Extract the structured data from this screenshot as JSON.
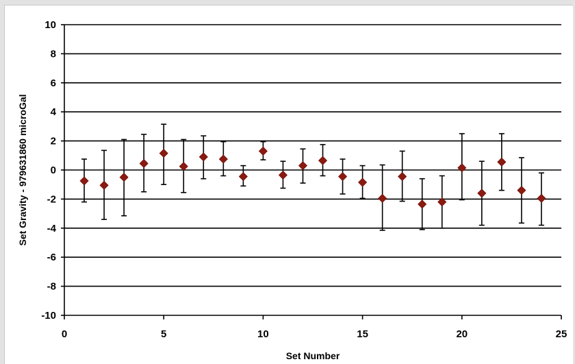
{
  "chart_data": {
    "type": "scatter",
    "title": "",
    "xlabel": "Set Number",
    "ylabel": "Set Gravity - 979631860 microGal",
    "xlim": [
      0,
      25
    ],
    "ylim": [
      -10,
      10
    ],
    "x_ticks": [
      0,
      5,
      10,
      15,
      20,
      25
    ],
    "y_ticks": [
      10,
      8,
      6,
      4,
      2,
      0,
      -2,
      -4,
      -6,
      -8,
      -10
    ],
    "x_tick_labels": [
      "0",
      "5",
      "10",
      "15",
      "20",
      "25"
    ],
    "y_tick_labels": [
      "10",
      "8",
      "6",
      "4",
      "2",
      "0",
      "-2",
      "-4",
      "-6",
      "-8",
      "-10"
    ],
    "grid": "horizontal",
    "marker_color": "#8b1a10",
    "error_bar_color": "#000000",
    "points": [
      {
        "x": 1,
        "y": -0.75,
        "err_low": -2.2,
        "err_high": 0.75
      },
      {
        "x": 2,
        "y": -1.05,
        "err_low": -3.4,
        "err_high": 1.35
      },
      {
        "x": 3,
        "y": -0.5,
        "err_low": -3.15,
        "err_high": 2.1
      },
      {
        "x": 4,
        "y": 0.45,
        "err_low": -1.5,
        "err_high": 2.45
      },
      {
        "x": 5,
        "y": 1.15,
        "err_low": -1.0,
        "err_high": 3.15
      },
      {
        "x": 6,
        "y": 0.25,
        "err_low": -1.55,
        "err_high": 2.1
      },
      {
        "x": 7,
        "y": 0.9,
        "err_low": -0.6,
        "err_high": 2.35
      },
      {
        "x": 8,
        "y": 0.75,
        "err_low": -0.4,
        "err_high": 1.95
      },
      {
        "x": 9,
        "y": -0.45,
        "err_low": -1.1,
        "err_high": 0.3
      },
      {
        "x": 10,
        "y": 1.3,
        "err_low": 0.7,
        "err_high": 1.95
      },
      {
        "x": 11,
        "y": -0.35,
        "err_low": -1.25,
        "err_high": 0.6
      },
      {
        "x": 12,
        "y": 0.3,
        "err_low": -0.9,
        "err_high": 1.45
      },
      {
        "x": 13,
        "y": 0.65,
        "err_low": -0.4,
        "err_high": 1.75
      },
      {
        "x": 14,
        "y": -0.45,
        "err_low": -1.65,
        "err_high": 0.75
      },
      {
        "x": 15,
        "y": -0.85,
        "err_low": -1.95,
        "err_high": 0.3
      },
      {
        "x": 16,
        "y": -1.95,
        "err_low": -4.15,
        "err_high": 0.35
      },
      {
        "x": 17,
        "y": -0.45,
        "err_low": -2.15,
        "err_high": 1.3
      },
      {
        "x": 18,
        "y": -2.35,
        "err_low": -4.1,
        "err_high": -0.6
      },
      {
        "x": 19,
        "y": -2.2,
        "err_low": -4.0,
        "err_high": -0.4
      },
      {
        "x": 20,
        "y": 0.15,
        "err_low": -2.05,
        "err_high": 2.5
      },
      {
        "x": 21,
        "y": -1.6,
        "err_low": -3.8,
        "err_high": 0.6
      },
      {
        "x": 22,
        "y": 0.55,
        "err_low": -1.4,
        "err_high": 2.5
      },
      {
        "x": 23,
        "y": -1.4,
        "err_low": -3.65,
        "err_high": 0.85
      },
      {
        "x": 24,
        "y": -1.95,
        "err_low": -3.8,
        "err_high": -0.2
      }
    ]
  }
}
